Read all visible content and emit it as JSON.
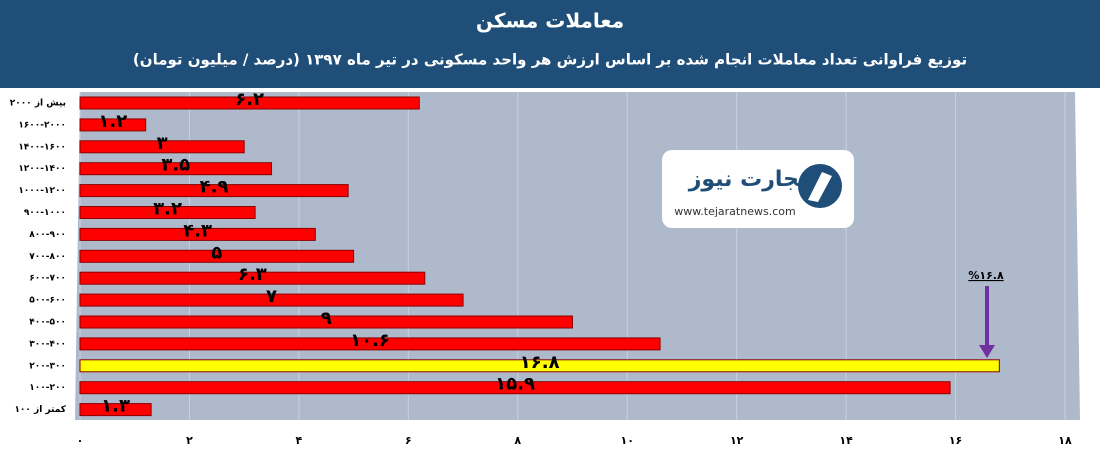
{
  "chart_data": {
    "type": "hbar",
    "title": "معاملات مسکن",
    "subtitle": "توزیع فراوانی تعداد معاملات انجام شده بر اساس ارزش هر واحد مسکونی در تیر ماه ۱۳۹۷ (درصد / میلیون تومان)",
    "categories": [
      "بیش از ۲۰۰۰",
      "۱۶۰۰-۲۰۰۰",
      "۱۴۰۰-۱۶۰۰",
      "۱۲۰۰-۱۴۰۰",
      "۱۰۰۰-۱۲۰۰",
      "۹۰۰-۱۰۰۰",
      "۸۰۰-۹۰۰",
      "۷۰۰-۸۰۰",
      "۶۰۰-۷۰۰",
      "۵۰۰-۶۰۰",
      "۴۰۰-۵۰۰",
      "۳۰۰-۴۰۰",
      "۲۰۰-۳۰۰",
      "۱۰۰-۲۰۰",
      "کمتر از ۱۰۰"
    ],
    "values": [
      6.2,
      1.2,
      3,
      3.5,
      4.9,
      3.2,
      4.3,
      5,
      6.3,
      7,
      9,
      10.6,
      16.8,
      15.9,
      1.3
    ],
    "value_labels": [
      "۶.۲",
      "۱.۲",
      "۳",
      "۳.۵",
      "۴.۹",
      "۳.۲",
      "۴.۳",
      "۵",
      "۶.۳",
      "۷",
      "۹",
      "۱۰.۶",
      "۱۶.۸",
      "۱۵.۹",
      "۱.۳"
    ],
    "colors": [
      "#ff0000",
      "#ff0000",
      "#ff0000",
      "#ff0000",
      "#ff0000",
      "#ff0000",
      "#ff0000",
      "#ff0000",
      "#ff0000",
      "#ff0000",
      "#ff0000",
      "#ff0000",
      "#ffff00",
      "#ff0000",
      "#ff0000"
    ],
    "xlim": [
      0,
      18
    ],
    "xticks": [
      {
        "value": 0,
        "label": "۰"
      },
      {
        "value": 2,
        "label": "۲"
      },
      {
        "value": 4,
        "label": "۴"
      },
      {
        "value": 6,
        "label": "۶"
      },
      {
        "value": 8,
        "label": "۸"
      },
      {
        "value": 10,
        "label": "۱۰"
      },
      {
        "value": 12,
        "label": "۱۲"
      },
      {
        "value": 14,
        "label": "۱۴"
      },
      {
        "value": 16,
        "label": "۱۶"
      },
      {
        "value": 18,
        "label": "۱۸"
      }
    ],
    "grid": true,
    "annotation": "%۱۶.۸",
    "logo": {
      "name": "تجارت نیوز",
      "url": "www.tejaratnews.com"
    }
  }
}
